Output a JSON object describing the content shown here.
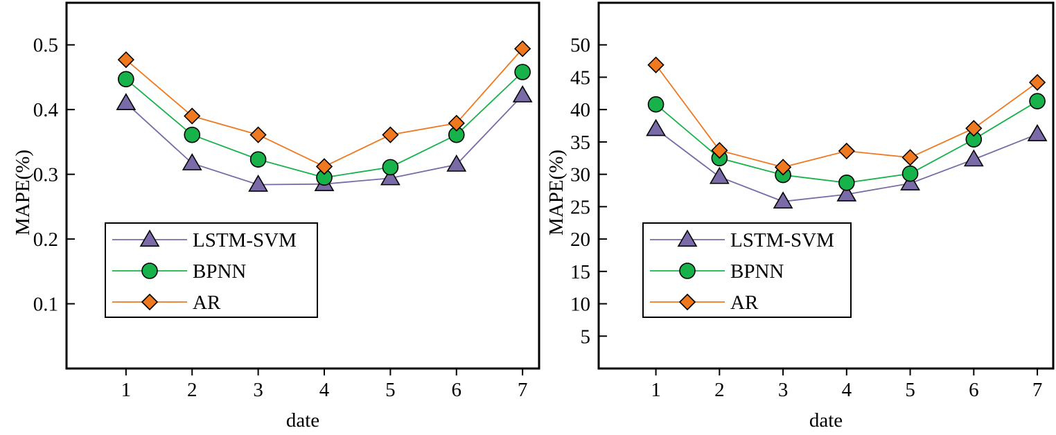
{
  "colors": {
    "LSTM-SVM": "#7b6aa8",
    "BPNN": "#18b24a",
    "AR": "#f0781e",
    "axis": "#000000"
  },
  "chart_data": [
    {
      "type": "line",
      "xlabel": "date",
      "ylabel": "MAPE(%)",
      "x": [
        1,
        2,
        3,
        4,
        5,
        6,
        7
      ],
      "xlim": [
        0.1,
        7.25
      ],
      "ylim": [
        0.0,
        0.565
      ],
      "yticks": [
        0.1,
        0.2,
        0.3,
        0.4,
        0.5
      ],
      "ytick_labels": [
        "0.1",
        "0.2",
        "0.3",
        "0.4",
        "0.5"
      ],
      "xtick_labels": [
        "1",
        "2",
        "3",
        "4",
        "5",
        "6",
        "7"
      ],
      "legend": "lower-left",
      "series": [
        {
          "name": "LSTM-SVM",
          "marker": "triangle",
          "values": [
            0.41,
            0.317,
            0.284,
            0.285,
            0.294,
            0.315,
            0.422
          ]
        },
        {
          "name": "BPNN",
          "marker": "circle",
          "values": [
            0.447,
            0.361,
            0.323,
            0.295,
            0.311,
            0.361,
            0.458
          ]
        },
        {
          "name": "AR",
          "marker": "diamond",
          "values": [
            0.477,
            0.39,
            0.361,
            0.312,
            0.361,
            0.379,
            0.494
          ]
        }
      ]
    },
    {
      "type": "line",
      "xlabel": "date",
      "ylabel": "MAPE(%)",
      "x": [
        1,
        2,
        3,
        4,
        5,
        6,
        7
      ],
      "xlim": [
        0.1,
        7.25
      ],
      "ylim": [
        0,
        56.5
      ],
      "yticks": [
        5,
        10,
        15,
        20,
        25,
        30,
        35,
        40,
        45,
        50
      ],
      "ytick_labels": [
        "5",
        "10",
        "15",
        "20",
        "25",
        "30",
        "35",
        "40",
        "45",
        "50"
      ],
      "xtick_labels": [
        "1",
        "2",
        "3",
        "4",
        "5",
        "6",
        "7"
      ],
      "legend": "lower-left",
      "series": [
        {
          "name": "LSTM-SVM",
          "marker": "triangle",
          "values": [
            37.0,
            29.6,
            25.8,
            26.9,
            28.6,
            32.3,
            36.2
          ]
        },
        {
          "name": "BPNN",
          "marker": "circle",
          "values": [
            40.8,
            32.5,
            29.9,
            28.7,
            30.1,
            35.4,
            41.3
          ]
        },
        {
          "name": "AR",
          "marker": "diamond",
          "values": [
            46.9,
            33.7,
            31.1,
            33.6,
            32.6,
            37.1,
            44.2
          ]
        }
      ]
    }
  ]
}
